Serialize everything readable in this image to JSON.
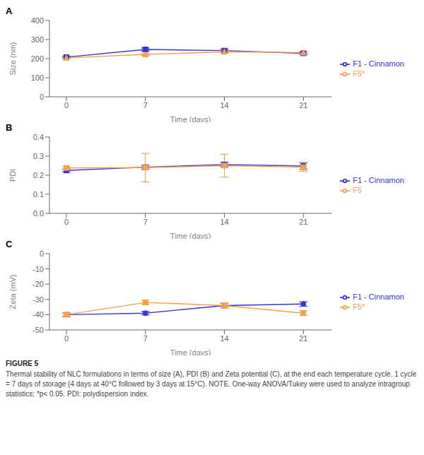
{
  "chart_data": [
    {
      "type": "line",
      "title": "A",
      "x": [
        0,
        7,
        14,
        21
      ],
      "xlabel": "Time (days)",
      "ylabel": "Size (nm)",
      "xlim": [
        -1.5,
        23.5
      ],
      "xticks": [
        0,
        7,
        14,
        21
      ],
      "ylim": [
        0,
        400
      ],
      "yticks": [
        0,
        100,
        200,
        300,
        400
      ],
      "grid": false,
      "legend": "right",
      "series": [
        {
          "name": "F1 - Cinnamon",
          "color": "#3535d4",
          "marker": "square",
          "values": [
            208,
            248,
            242,
            228
          ],
          "errors": [
            5,
            8,
            8,
            7
          ]
        },
        {
          "name": "F5*",
          "color": "#f5a04a",
          "marker": "triangle",
          "values": [
            204,
            222,
            236,
            232
          ],
          "errors": [
            4,
            5,
            5,
            5
          ]
        }
      ]
    },
    {
      "type": "line",
      "title": "B",
      "x": [
        0,
        7,
        14,
        21
      ],
      "xlabel": "Time (days)",
      "ylabel": "PDI",
      "xlim": [
        -1.5,
        23.5
      ],
      "xticks": [
        0,
        7,
        14,
        21
      ],
      "ylim": [
        0.0,
        0.4
      ],
      "yticks": [
        {
          "value": 0,
          "label": "0.0"
        },
        0.1,
        0.2,
        0.3,
        0.4
      ],
      "grid": false,
      "legend": "right",
      "series": [
        {
          "name": "F1 - Cinnamon",
          "color": "#3535d4",
          "marker": "square",
          "values": [
            0.225,
            0.242,
            0.256,
            0.248
          ],
          "errors": [
            0.007,
            0.01,
            0.012,
            0.018
          ]
        },
        {
          "name": "F5",
          "color": "#f5a04a",
          "marker": "square",
          "values": [
            0.238,
            0.24,
            0.25,
            0.242
          ],
          "errors": [
            0.008,
            0.075,
            0.06,
            0.022
          ]
        }
      ]
    },
    {
      "type": "line",
      "title": "C",
      "x": [
        0,
        7,
        14,
        21
      ],
      "xlabel": "Time (days)",
      "ylabel": "Zeta (mV)",
      "xlim": [
        -1.5,
        23.5
      ],
      "xticks": [
        0,
        7,
        14,
        21
      ],
      "ylim": [
        -50,
        0
      ],
      "yticks": [
        -50,
        -40,
        -30,
        -20,
        -10,
        0
      ],
      "grid": false,
      "legend": "right",
      "series": [
        {
          "name": "F1 - Cinnamon",
          "color": "#3535d4",
          "marker": "circle",
          "values": [
            -40,
            -39,
            -34,
            -33
          ],
          "errors": [
            1.2,
            1.2,
            1.5,
            1.5
          ]
        },
        {
          "name": "F5*",
          "color": "#f5a04a",
          "marker": "square",
          "values": [
            -40,
            -32,
            -34,
            -39
          ],
          "errors": [
            1.2,
            1.5,
            1.5,
            1.5
          ]
        }
      ]
    }
  ],
  "annotations": [
    "FIGURE 5",
    "Thermal stability of NLC formulations in terms of size (A), PDI (B) and Zeta potential (C), at the end each temperature cycle. 1 cycle = 7 days of storage (4 days at 40°C followed by 3 days at 15°C). NOTE. One-way ANOVA/Tukey were used to analyze intragroup statistics; *p< 0.05. PDI: polydispersion index."
  ]
}
